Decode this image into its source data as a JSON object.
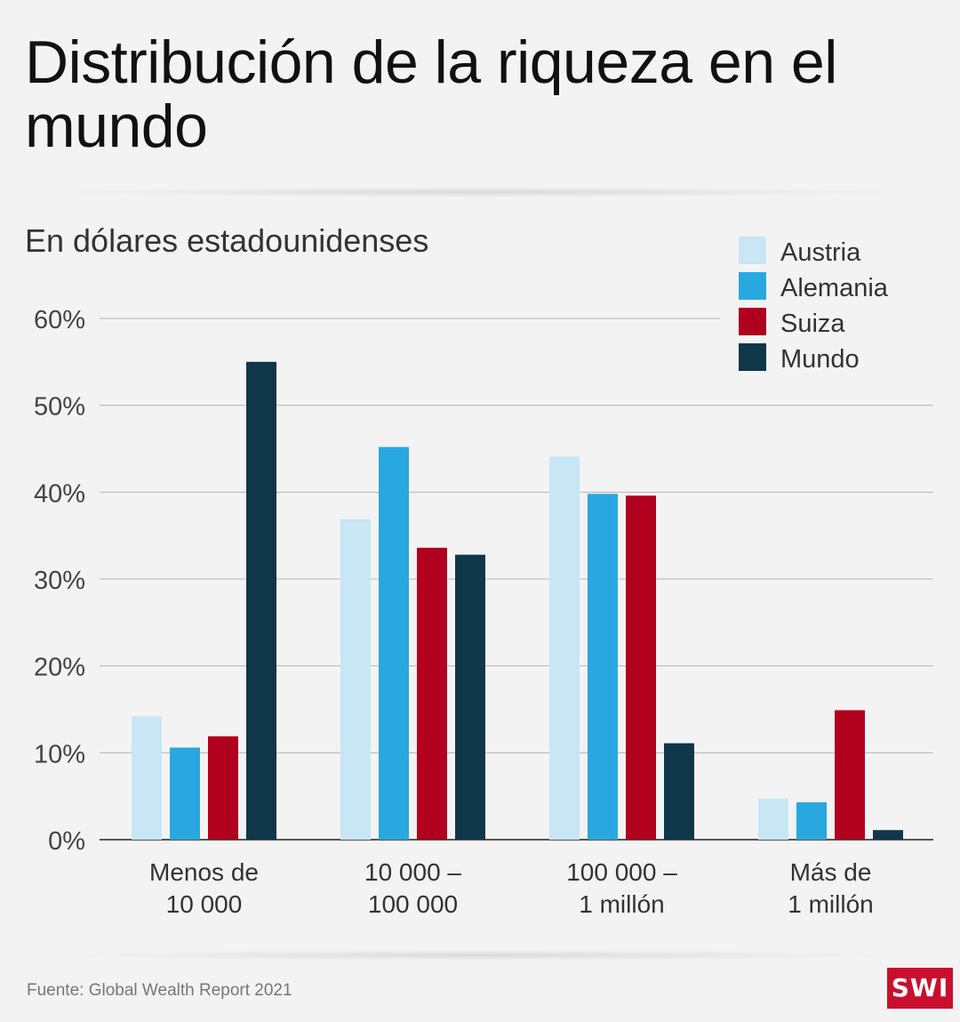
{
  "title": "Distribución de la riqueza en el mundo",
  "subtitle": "En dólares estadounidenses",
  "footer": "Fuente:  Global Wealth Report 2021",
  "logo": "SWI",
  "chart_data": {
    "type": "bar",
    "categories": [
      [
        "Menos de",
        "10 000"
      ],
      [
        "10 000 –",
        "100 000"
      ],
      [
        "100 000 –",
        "1 millón"
      ],
      [
        "Más de",
        "1 millón"
      ]
    ],
    "series": [
      {
        "name": "Austria",
        "color": "#c8e6f4",
        "values": [
          14.2,
          36.9,
          44.1,
          4.7
        ]
      },
      {
        "name": "Alemania",
        "color": "#29a8e0",
        "values": [
          10.6,
          45.2,
          39.8,
          4.3
        ]
      },
      {
        "name": "Suiza",
        "color": "#b0001e",
        "values": [
          11.9,
          33.6,
          39.6,
          14.9
        ]
      },
      {
        "name": "Mundo",
        "color": "#10364a",
        "values": [
          55.0,
          32.8,
          11.1,
          1.1
        ]
      }
    ],
    "ylim": [
      0,
      60
    ],
    "yticks": [
      "0%",
      "10%",
      "20%",
      "30%",
      "40%",
      "50%",
      "60%"
    ],
    "grid": true,
    "legend": "top-right"
  }
}
